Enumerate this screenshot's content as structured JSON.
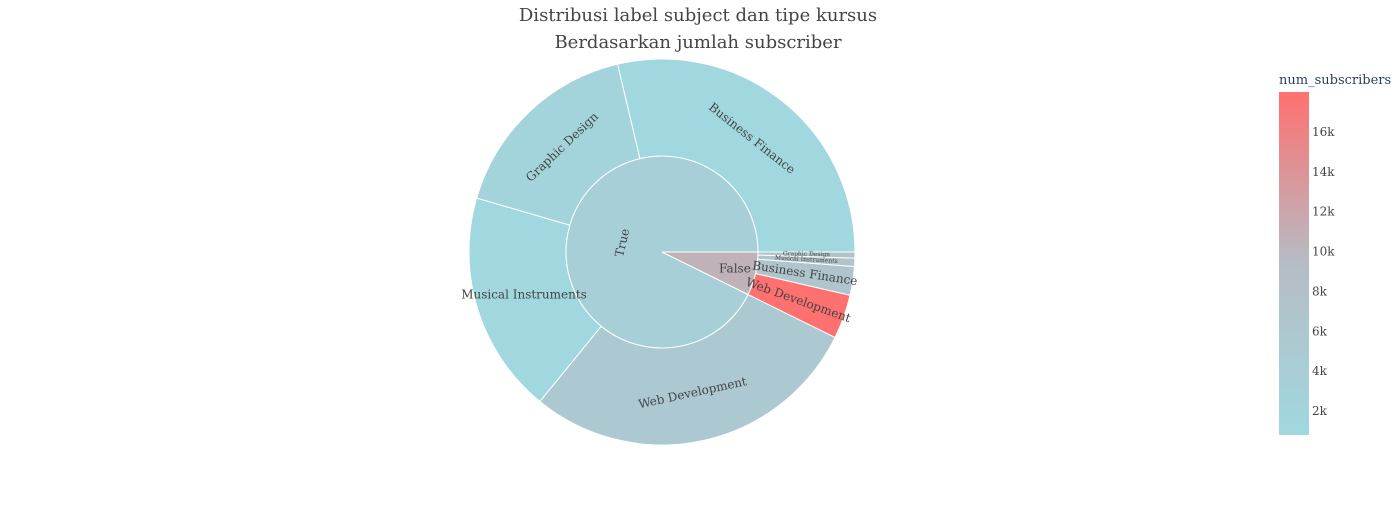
{
  "chart_data": {
    "type": "sunburst",
    "title": "Distribusi label subject dan tipe kursus",
    "subtitle": "Berdasarkan jumlah subscriber",
    "color_metric": "num_subscribers",
    "colorscale": [
      "#a0d8e0",
      "#b6bcc4",
      "#ff7070"
    ],
    "color_range": [
      800,
      18000
    ],
    "colorbar_title": "num_subscribers",
    "colorbar_ticks": [
      {
        "value": 2000,
        "label": "2k"
      },
      {
        "value": 4000,
        "label": "4k"
      },
      {
        "value": 6000,
        "label": "6k"
      },
      {
        "value": 8000,
        "label": "8k"
      },
      {
        "value": 10000,
        "label": "10k"
      },
      {
        "value": 12000,
        "label": "12k"
      },
      {
        "value": 14000,
        "label": "14k"
      },
      {
        "value": 16000,
        "label": "16k"
      }
    ],
    "nodes": [
      {
        "id": "true",
        "label": "True",
        "value": 92.7,
        "color": 3500,
        "children": [
          {
            "id": "true-bf",
            "label": "Business Finance",
            "value": 28.7,
            "color": 1000
          },
          {
            "id": "true-gd",
            "label": "Graphic Design",
            "value": 16.8,
            "color": 2000
          },
          {
            "id": "true-mi",
            "label": "Musical Instruments",
            "value": 18.6,
            "color": 1200
          },
          {
            "id": "true-wd",
            "label": "Web Development",
            "value": 28.6,
            "color": 5500
          }
        ]
      },
      {
        "id": "false",
        "label": "False",
        "value": 7.3,
        "color": 10500,
        "children": [
          {
            "id": "false-wd",
            "label": "Web Development",
            "value": 3.7,
            "color": 18000
          },
          {
            "id": "false-bf",
            "label": "Business Finance",
            "value": 2.4,
            "color": 6500
          },
          {
            "id": "false-mi",
            "label": "Musical Instruments",
            "value": 0.7,
            "color": 7000
          },
          {
            "id": "false-gd",
            "label": "Graphic Design",
            "value": 0.5,
            "color": 7500
          }
        ]
      }
    ]
  }
}
